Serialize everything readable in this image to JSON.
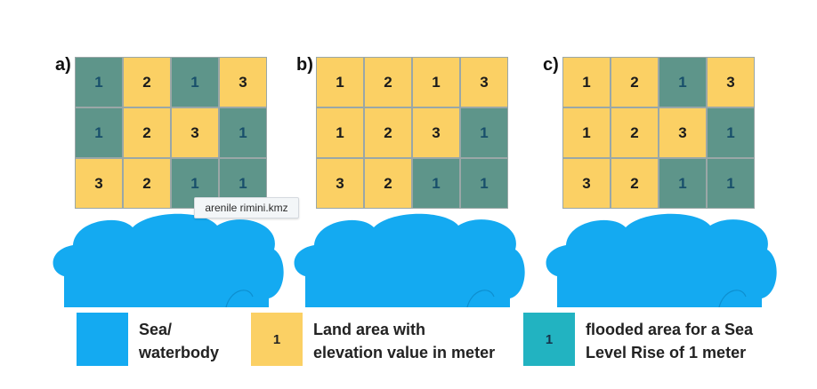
{
  "panels": [
    {
      "label": "a)",
      "cells": [
        {
          "v": "1",
          "t": "flood"
        },
        {
          "v": "2",
          "t": "land"
        },
        {
          "v": "1",
          "t": "flood"
        },
        {
          "v": "3",
          "t": "land"
        },
        {
          "v": "1",
          "t": "flood"
        },
        {
          "v": "2",
          "t": "land"
        },
        {
          "v": "3",
          "t": "land"
        },
        {
          "v": "1",
          "t": "flood"
        },
        {
          "v": "3",
          "t": "land"
        },
        {
          "v": "2",
          "t": "land"
        },
        {
          "v": "1",
          "t": "flood"
        },
        {
          "v": "1",
          "t": "flood"
        }
      ]
    },
    {
      "label": "b)",
      "cells": [
        {
          "v": "1",
          "t": "land"
        },
        {
          "v": "2",
          "t": "land"
        },
        {
          "v": "1",
          "t": "land"
        },
        {
          "v": "3",
          "t": "land"
        },
        {
          "v": "1",
          "t": "land"
        },
        {
          "v": "2",
          "t": "land"
        },
        {
          "v": "3",
          "t": "land"
        },
        {
          "v": "1",
          "t": "flood"
        },
        {
          "v": "3",
          "t": "land"
        },
        {
          "v": "2",
          "t": "land"
        },
        {
          "v": "1",
          "t": "flood"
        },
        {
          "v": "1",
          "t": "flood"
        }
      ]
    },
    {
      "label": "c)",
      "cells": [
        {
          "v": "1",
          "t": "land"
        },
        {
          "v": "2",
          "t": "land"
        },
        {
          "v": "1",
          "t": "flood"
        },
        {
          "v": "3",
          "t": "land"
        },
        {
          "v": "1",
          "t": "land"
        },
        {
          "v": "2",
          "t": "land"
        },
        {
          "v": "3",
          "t": "land"
        },
        {
          "v": "1",
          "t": "flood"
        },
        {
          "v": "3",
          "t": "land"
        },
        {
          "v": "2",
          "t": "land"
        },
        {
          "v": "1",
          "t": "flood"
        },
        {
          "v": "1",
          "t": "flood"
        }
      ]
    }
  ],
  "tooltip": "arenile rimini.kmz",
  "legend": {
    "sea": {
      "line1": "Sea/",
      "line2": "waterbody"
    },
    "land": {
      "value": "1",
      "line1": "Land area with",
      "line2": "elevation value in meter"
    },
    "flooded": {
      "value": "1",
      "line1": "flooded area for a Sea",
      "line2": "Level Rise of 1 meter"
    }
  },
  "colors": {
    "sea": "#14aaf1",
    "land": "#fbd064",
    "flood": "#5e958a",
    "legend_flood": "#22b3c1"
  }
}
